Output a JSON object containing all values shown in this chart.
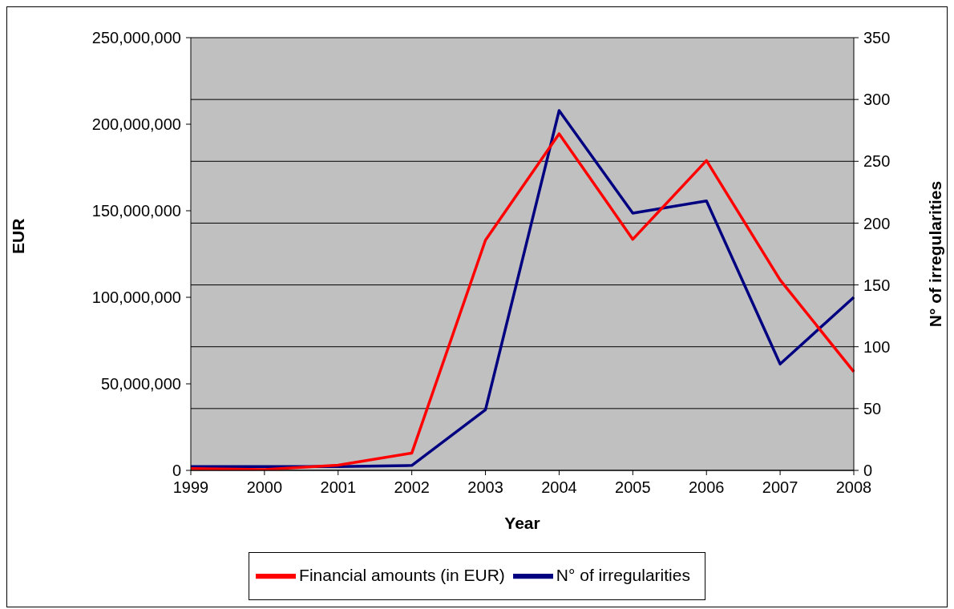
{
  "chart_data": {
    "type": "line",
    "xlabel": "Year",
    "ylabel": "EUR",
    "y2label": "N° of irregularities",
    "categories": [
      "1999",
      "2000",
      "2001",
      "2002",
      "2003",
      "2004",
      "2005",
      "2006",
      "2007",
      "2008"
    ],
    "series": [
      {
        "name": "N° of irregularities",
        "color": "#000080",
        "axis": "y2",
        "values": [
          3,
          3,
          3,
          4,
          49,
          291,
          208,
          218,
          86,
          140
        ]
      },
      {
        "name": "Financial amounts (in EUR)",
        "color": "#ff0000",
        "values": [
          1000000,
          500000,
          3000000,
          10000000,
          133000000,
          194500000,
          133500000,
          179000000,
          110000000,
          57000000
        ]
      }
    ],
    "ylim": [
      0,
      250000000
    ],
    "yticks": [
      {
        "value": 0,
        "label": "0"
      },
      {
        "value": 50000000,
        "label": "50,000,000"
      },
      {
        "value": 100000000,
        "label": "100,000,000"
      },
      {
        "value": 150000000,
        "label": "150,000,000"
      },
      {
        "value": 200000000,
        "label": "200,000,000"
      },
      {
        "value": 250000000,
        "label": "250,000,000"
      }
    ],
    "y2lim": [
      0,
      350
    ],
    "y2ticks": [
      0,
      50,
      100,
      150,
      200,
      250,
      300,
      350
    ],
    "grid": "y",
    "legend": "bottom",
    "marker": "none",
    "line_style": "solid"
  }
}
